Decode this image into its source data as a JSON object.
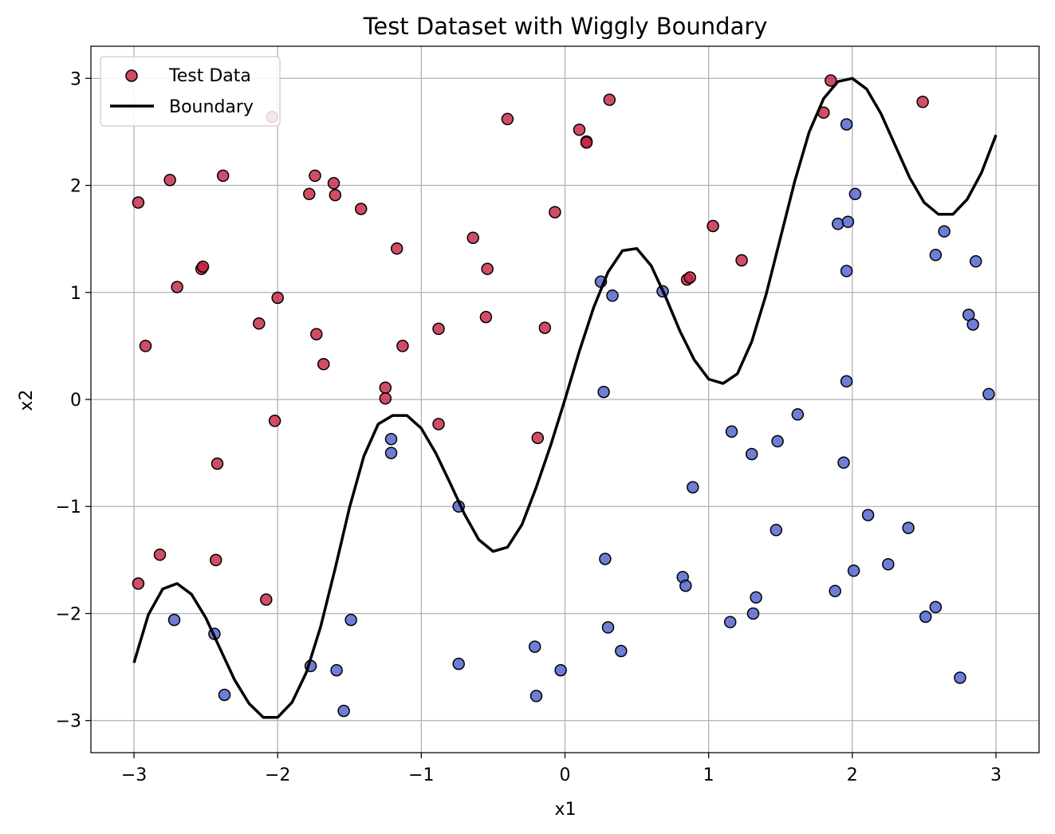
{
  "chart_data": {
    "type": "scatter",
    "title": "Test Dataset with Wiggly Boundary",
    "xlabel": "x1",
    "ylabel": "x2",
    "xlim": [
      -3.3,
      3.3
    ],
    "ylim": [
      -3.3,
      3.3
    ],
    "xticks": [
      -3,
      -2,
      -1,
      0,
      1,
      2,
      3
    ],
    "yticks": [
      -3,
      -2,
      -1,
      0,
      1,
      2,
      3
    ],
    "xtick_labels": [
      "−3",
      "−2",
      "−1",
      "0",
      "1",
      "2",
      "3"
    ],
    "ytick_labels": [
      "−3",
      "−2",
      "−1",
      "0",
      "1",
      "2",
      "3"
    ],
    "grid": true,
    "legend_position": "upper-left",
    "legend": [
      {
        "label": "Test Data",
        "marker": "circle",
        "color": "#c6203f"
      },
      {
        "label": "Boundary",
        "marker": "line",
        "color": "#000000"
      }
    ],
    "colors": {
      "class_red": "#c6203f",
      "class_blue": "#4a5ccc",
      "boundary": "#000000",
      "edge": "#000000"
    },
    "boundary": {
      "x_range": [
        -3,
        3
      ],
      "points": [
        [
          -3.0,
          -2.46
        ],
        [
          -2.9,
          -2.01
        ],
        [
          -2.8,
          -1.77
        ],
        [
          -2.7,
          -1.72
        ],
        [
          -2.6,
          -1.82
        ],
        [
          -2.5,
          -2.04
        ],
        [
          -2.4,
          -2.33
        ],
        [
          -2.3,
          -2.62
        ],
        [
          -2.2,
          -2.84
        ],
        [
          -2.1,
          -2.97
        ],
        [
          -2.0,
          -2.97
        ],
        [
          -1.9,
          -2.83
        ],
        [
          -1.8,
          -2.55
        ],
        [
          -1.7,
          -2.12
        ],
        [
          -1.6,
          -1.58
        ],
        [
          -1.5,
          -1.01
        ],
        [
          -1.4,
          -0.53
        ],
        [
          -1.3,
          -0.23
        ],
        [
          -1.2,
          -0.15
        ],
        [
          -1.1,
          -0.15
        ],
        [
          -1.0,
          -0.27
        ],
        [
          -0.9,
          -0.5
        ],
        [
          -0.8,
          -0.78
        ],
        [
          -0.7,
          -1.07
        ],
        [
          -0.6,
          -1.31
        ],
        [
          -0.5,
          -1.42
        ],
        [
          -0.4,
          -1.38
        ],
        [
          -0.3,
          -1.17
        ],
        [
          -0.2,
          -0.82
        ],
        [
          -0.1,
          -0.43
        ],
        [
          0.0,
          0.0
        ],
        [
          0.1,
          0.45
        ],
        [
          0.2,
          0.86
        ],
        [
          0.3,
          1.19
        ],
        [
          0.4,
          1.39
        ],
        [
          0.5,
          1.41
        ],
        [
          0.6,
          1.25
        ],
        [
          0.7,
          0.96
        ],
        [
          0.8,
          0.64
        ],
        [
          0.9,
          0.37
        ],
        [
          1.0,
          0.19
        ],
        [
          1.1,
          0.15
        ],
        [
          1.2,
          0.24
        ],
        [
          1.3,
          0.54
        ],
        [
          1.4,
          0.98
        ],
        [
          1.5,
          1.51
        ],
        [
          1.6,
          2.04
        ],
        [
          1.7,
          2.5
        ],
        [
          1.8,
          2.81
        ],
        [
          1.9,
          2.97
        ],
        [
          2.0,
          3.0
        ],
        [
          2.1,
          2.9
        ],
        [
          2.2,
          2.67
        ],
        [
          2.3,
          2.37
        ],
        [
          2.4,
          2.07
        ],
        [
          2.5,
          1.84
        ],
        [
          2.6,
          1.73
        ],
        [
          2.7,
          1.73
        ],
        [
          2.8,
          1.87
        ],
        [
          2.9,
          2.12
        ],
        [
          3.0,
          2.47
        ]
      ]
    },
    "series": [
      {
        "name": "Test Data",
        "class": "red",
        "points": [
          [
            -2.97,
            1.84
          ],
          [
            -2.75,
            2.05
          ],
          [
            -2.92,
            0.5
          ],
          [
            -2.7,
            1.05
          ],
          [
            -2.53,
            1.22
          ],
          [
            -2.52,
            1.24
          ],
          [
            -2.38,
            2.09
          ],
          [
            -2.04,
            2.64
          ],
          [
            -2.13,
            0.71
          ],
          [
            -2.0,
            0.95
          ],
          [
            -2.02,
            -0.2
          ],
          [
            -2.42,
            -0.6
          ],
          [
            -2.82,
            -1.45
          ],
          [
            -2.97,
            -1.72
          ],
          [
            -2.43,
            -1.5
          ],
          [
            -2.08,
            -1.87
          ],
          [
            -1.78,
            1.92
          ],
          [
            -1.74,
            2.09
          ],
          [
            -1.61,
            2.02
          ],
          [
            -1.6,
            1.91
          ],
          [
            -1.42,
            1.78
          ],
          [
            -1.73,
            0.61
          ],
          [
            -1.68,
            0.33
          ],
          [
            -1.25,
            0.11
          ],
          [
            -1.25,
            0.01
          ],
          [
            -1.13,
            0.5
          ],
          [
            -1.17,
            1.41
          ],
          [
            -0.88,
            0.66
          ],
          [
            -0.88,
            -0.23
          ],
          [
            -0.64,
            1.51
          ],
          [
            -0.54,
            1.22
          ],
          [
            -0.55,
            0.77
          ],
          [
            -0.4,
            2.62
          ],
          [
            -0.07,
            1.75
          ],
          [
            -0.14,
            0.67
          ],
          [
            -0.19,
            -0.36
          ],
          [
            0.1,
            2.52
          ],
          [
            0.15,
            2.41
          ],
          [
            0.15,
            2.4
          ],
          [
            0.31,
            2.8
          ],
          [
            1.03,
            1.62
          ],
          [
            1.23,
            1.3
          ],
          [
            0.85,
            1.12
          ],
          [
            0.87,
            1.14
          ],
          [
            1.8,
            2.68
          ],
          [
            1.85,
            2.98
          ],
          [
            2.49,
            2.78
          ]
        ]
      },
      {
        "name": "",
        "class": "blue",
        "points": [
          [
            -2.72,
            -2.06
          ],
          [
            -2.44,
            -2.19
          ],
          [
            -2.37,
            -2.76
          ],
          [
            -1.77,
            -2.49
          ],
          [
            -1.59,
            -2.53
          ],
          [
            -1.54,
            -2.91
          ],
          [
            -1.49,
            -2.06
          ],
          [
            -1.21,
            -0.37
          ],
          [
            -1.21,
            -0.5
          ],
          [
            -0.74,
            -1.0
          ],
          [
            -0.74,
            -2.47
          ],
          [
            -0.21,
            -2.31
          ],
          [
            -0.2,
            -2.77
          ],
          [
            -0.03,
            -2.53
          ],
          [
            0.25,
            1.1
          ],
          [
            0.33,
            0.97
          ],
          [
            0.27,
            0.07
          ],
          [
            0.28,
            -1.49
          ],
          [
            0.3,
            -2.13
          ],
          [
            0.39,
            -2.35
          ],
          [
            0.68,
            1.01
          ],
          [
            0.82,
            -1.66
          ],
          [
            0.84,
            -1.74
          ],
          [
            0.89,
            -0.82
          ],
          [
            1.16,
            -0.3
          ],
          [
            1.15,
            -2.08
          ],
          [
            1.3,
            -0.51
          ],
          [
            1.31,
            -2.0
          ],
          [
            1.33,
            -1.85
          ],
          [
            1.48,
            -0.39
          ],
          [
            1.47,
            -1.22
          ],
          [
            1.62,
            -0.14
          ],
          [
            1.88,
            -1.79
          ],
          [
            1.94,
            -0.59
          ],
          [
            1.96,
            2.57
          ],
          [
            1.9,
            1.64
          ],
          [
            1.97,
            1.66
          ],
          [
            1.96,
            1.2
          ],
          [
            1.96,
            0.17
          ],
          [
            2.02,
            1.92
          ],
          [
            2.01,
            -1.6
          ],
          [
            2.11,
            -1.08
          ],
          [
            2.25,
            -1.54
          ],
          [
            2.39,
            -1.2
          ],
          [
            2.51,
            -2.03
          ],
          [
            2.58,
            -1.94
          ],
          [
            2.58,
            1.35
          ],
          [
            2.64,
            1.57
          ],
          [
            2.75,
            -2.6
          ],
          [
            2.81,
            0.79
          ],
          [
            2.84,
            0.7
          ],
          [
            2.86,
            1.29
          ],
          [
            2.95,
            0.05
          ]
        ]
      }
    ]
  }
}
